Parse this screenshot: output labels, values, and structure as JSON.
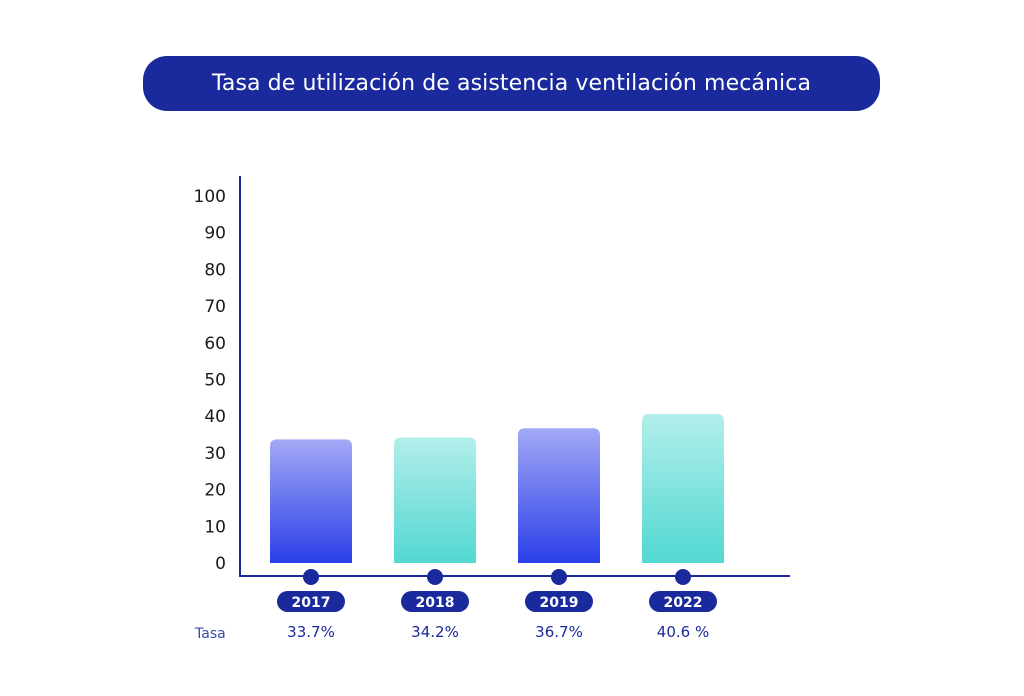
{
  "title": "Tasa de utilización de asistencia ventilación mecánica",
  "row_label": "Tasa",
  "colors": {
    "title_bg": "#1a2a9c",
    "axis": "#1a2a9c",
    "bar_blue_top": "#a3a9f5",
    "bar_blue_bottom": "#2a3ee8",
    "bar_teal_top": "#b2eeea",
    "bar_teal_bottom": "#52d8d2",
    "pill": "#1a2a9c"
  },
  "chart_data": {
    "type": "bar",
    "title": "Tasa de utilización de asistencia ventilación mecánica",
    "categories": [
      "2017",
      "2018",
      "2019",
      "2022"
    ],
    "values": [
      33.7,
      34.2,
      36.7,
      40.6
    ],
    "value_labels": [
      "33.7%",
      "34.2%",
      "36.7%",
      "40.6 %"
    ],
    "bar_styles": [
      "blue",
      "teal",
      "blue",
      "teal"
    ],
    "yticks": [
      "0",
      "10",
      "20",
      "30",
      "40",
      "50",
      "60",
      "70",
      "80",
      "90",
      "100"
    ],
    "ylim": [
      0,
      100
    ],
    "xlabel": "",
    "ylabel": "",
    "grid": false
  }
}
